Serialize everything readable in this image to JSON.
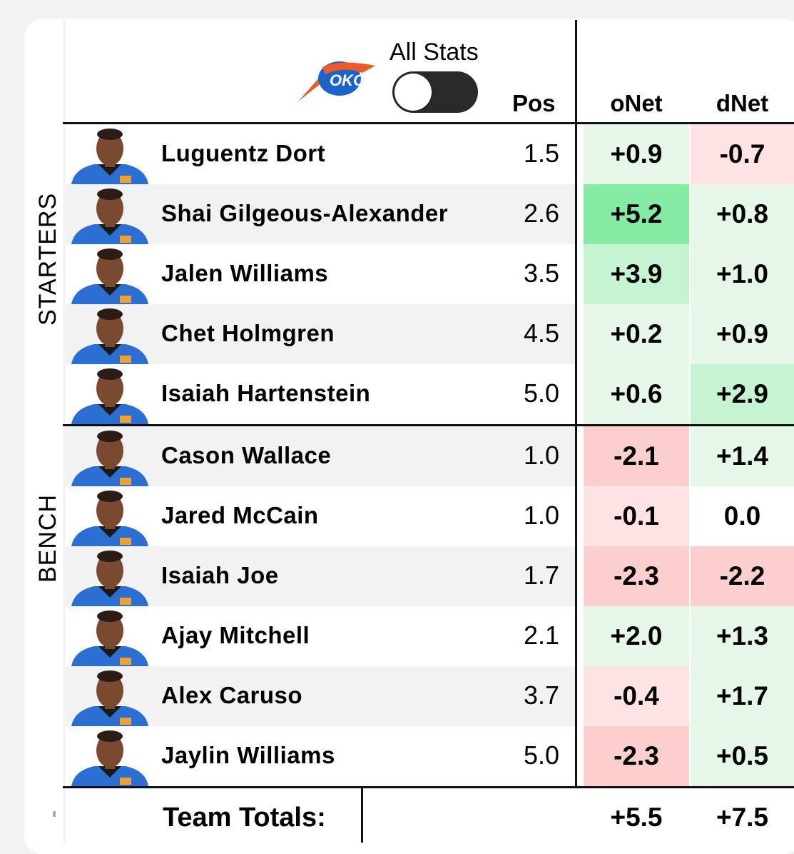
{
  "header": {
    "toggle_label": "All Stats",
    "toggle_on": false,
    "columns": {
      "pos": "Pos",
      "onet": "oNet",
      "dnet": "dNet"
    },
    "logo_text": "OKC"
  },
  "groups": {
    "starters": "STARTERS",
    "bench": "BENCH"
  },
  "players": [
    {
      "name": "Luguentz Dort",
      "pos": "1.5",
      "onet": "+0.9",
      "dnet": "-0.7",
      "onet_color": "#e6f7e9",
      "dnet_color": "#fde3e4"
    },
    {
      "name": "Shai Gilgeous-Alexander",
      "pos": "2.6",
      "onet": "+5.2",
      "dnet": "+0.8",
      "onet_color": "#85eaa3",
      "dnet_color": "#e6f7e9"
    },
    {
      "name": "Jalen Williams",
      "pos": "3.5",
      "onet": "+3.9",
      "dnet": "+1.0",
      "onet_color": "#c6f3d2",
      "dnet_color": "#e6f7e9"
    },
    {
      "name": "Chet Holmgren",
      "pos": "4.5",
      "onet": "+0.2",
      "dnet": "+0.9",
      "onet_color": "#e6f7e9",
      "dnet_color": "#e6f7e9"
    },
    {
      "name": "Isaiah Hartenstein",
      "pos": "5.0",
      "onet": "+0.6",
      "dnet": "+2.9",
      "onet_color": "#e6f7e9",
      "dnet_color": "#c6f3d2"
    },
    {
      "name": "Cason Wallace",
      "pos": "1.0",
      "onet": "-2.1",
      "dnet": "+1.4",
      "onet_color": "#fccfcf",
      "dnet_color": "#e6f7e9"
    },
    {
      "name": "Jared McCain",
      "pos": "1.0",
      "onet": "-0.1",
      "dnet": "0.0",
      "onet_color": "#fde3e4",
      "dnet_color": "#ffffff"
    },
    {
      "name": "Isaiah Joe",
      "pos": "1.7",
      "onet": "-2.3",
      "dnet": "-2.2",
      "onet_color": "#fccfcf",
      "dnet_color": "#fccfcf"
    },
    {
      "name": "Ajay Mitchell",
      "pos": "2.1",
      "onet": "+2.0",
      "dnet": "+1.3",
      "onet_color": "#e6f7e9",
      "dnet_color": "#e6f7e9"
    },
    {
      "name": "Alex Caruso",
      "pos": "3.7",
      "onet": "-0.4",
      "dnet": "+1.7",
      "onet_color": "#fde3e4",
      "dnet_color": "#e6f7e9"
    },
    {
      "name": "Jaylin Williams",
      "pos": "5.0",
      "onet": "-2.3",
      "dnet": "+0.5",
      "onet_color": "#fccfcf",
      "dnet_color": "#e6f7e9"
    }
  ],
  "totals": {
    "label": "Team Totals:",
    "onet": "+5.5",
    "dnet": "+7.5"
  },
  "colors": {
    "row_alt": "#f2f2f2",
    "jersey": "#2a6fd1",
    "logo_blue": "#1d63c9",
    "logo_orange": "#f05a28"
  }
}
